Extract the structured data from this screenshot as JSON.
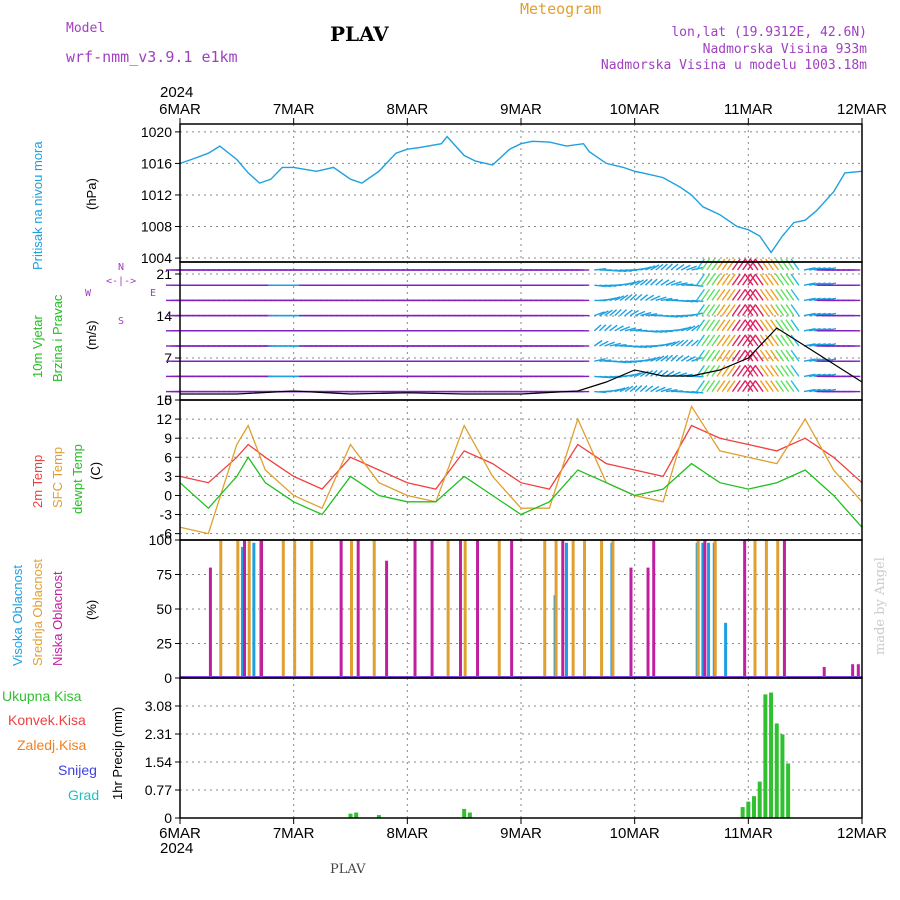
{
  "header": {
    "model_label": "Model",
    "model_name": "wrf-nmm_v3.9.1 e1km",
    "title": "PLAV",
    "meteogram": "Meteogram",
    "lonlat": "lon,lat (19.9312E, 42.6N)",
    "altitude": "Nadmorska Visina 933m",
    "model_altitude": "Nadmorska Visina u modelu 1003.18m",
    "year_top": "2024",
    "year_bottom": "2024",
    "footer": "PLAV",
    "credit": "made by Angel"
  },
  "x_axis": {
    "labels": [
      "6MAR",
      "7MAR",
      "8MAR",
      "9MAR",
      "10MAR",
      "11MAR",
      "12MAR"
    ]
  },
  "colors": {
    "pressure": "#1ea0e0",
    "temp2m": "#f04040",
    "sfc": "#e0a030",
    "dew": "#20c020",
    "high_cloud": "#1ea0e0",
    "mid_cloud": "#e0a030",
    "low_cloud": "#c020a0",
    "precip": "#30c030",
    "wind_calm": "#8020c0",
    "wind_mid": "#1ea0e0",
    "wind_strong": "#e02060"
  },
  "panels": {
    "pressure": {
      "ylabel": "Pritisak na nivou mora",
      "unit": "(hPa)",
      "ticks": [
        "1004",
        "1008",
        "1012",
        "1016",
        "1020"
      ]
    },
    "wind": {
      "ylabel1": "10m Vjetar",
      "ylabel2": "Brzina i Pravac",
      "unit": "(m/s)",
      "ticks": [
        "0",
        "7",
        "14",
        "21"
      ],
      "compass_n": "N",
      "compass_w": "W",
      "compass_e": "E",
      "compass_s": "S"
    },
    "temp": {
      "ylabel1": "2m Temp",
      "ylabel2": "SFC Temp",
      "ylabel3": "dewpt Temp",
      "unit": "(C)",
      "ticks": [
        "-6",
        "-3",
        "0",
        "3",
        "6",
        "9",
        "12",
        "15"
      ]
    },
    "cloud": {
      "ylabel1": "Visoka Oblacnost",
      "ylabel2": "Srednja Oblacnost",
      "ylabel3": "Niska Oblacnost",
      "unit": "(%)",
      "ticks": [
        "0",
        "25",
        "50",
        "75",
        "100"
      ]
    },
    "precip": {
      "legend": [
        "Ukupna Kisa",
        "Konvek.Kisa",
        "Zaledj.Kisa",
        "Snijeg",
        "Grad"
      ],
      "ylabel": "1hr Precip (mm)",
      "ticks": [
        "0",
        "0.77",
        "1.54",
        "2.31",
        "3.08"
      ]
    }
  },
  "chart_data": [
    {
      "type": "line",
      "title": "Pritisak na nivou mora",
      "ylabel": "(hPa)",
      "ylim": [
        1003.5,
        1021
      ],
      "series": [
        {
          "name": "Pritisak na nivou mora",
          "x": [
            0,
            0.1,
            0.25,
            0.35,
            0.5,
            0.6,
            0.7,
            0.8,
            0.9,
            1.0,
            1.2,
            1.35,
            1.5,
            1.6,
            1.75,
            1.9,
            2.0,
            2.1,
            2.3,
            2.35,
            2.5,
            2.6,
            2.75,
            2.9,
            3.0,
            3.1,
            3.25,
            3.4,
            3.55,
            3.6,
            3.75,
            3.9,
            4.0,
            4.1,
            4.25,
            4.4,
            4.5,
            4.6,
            4.75,
            4.9,
            5.0,
            5.1,
            5.2,
            5.3,
            5.4,
            5.5,
            5.6,
            5.75,
            5.85,
            6.0
          ],
          "values": [
            1016,
            1016.5,
            1017.3,
            1018.2,
            1016.5,
            1014.8,
            1013.5,
            1014,
            1015.5,
            1015.5,
            1015,
            1015.5,
            1014,
            1013.5,
            1015,
            1017.3,
            1017.8,
            1018,
            1018.5,
            1019.4,
            1017,
            1016.3,
            1015.8,
            1017.8,
            1018.5,
            1018.8,
            1018.7,
            1018.2,
            1018.5,
            1017.5,
            1016,
            1015.5,
            1015,
            1014.7,
            1014.2,
            1013,
            1012,
            1010.5,
            1009.5,
            1008,
            1007.6,
            1006.8,
            1004.7,
            1006.8,
            1008.5,
            1008.8,
            1010,
            1012.4,
            1014.8,
            1015
          ]
        }
      ]
    },
    {
      "type": "line",
      "title": "10m Vjetar Brzina i Pravac",
      "ylabel": "(m/s)",
      "ylim": [
        0,
        23
      ],
      "series": [
        {
          "name": "10m Vjetar",
          "x": [
            0,
            0.5,
            1.0,
            1.5,
            2.0,
            2.5,
            3.0,
            3.5,
            3.75,
            4.0,
            4.25,
            4.5,
            4.75,
            5.0,
            5.25,
            5.5,
            5.75,
            6.0
          ],
          "values": [
            1,
            1,
            1.5,
            1,
            1.2,
            1,
            1,
            1.5,
            3,
            5,
            4,
            4,
            5,
            7,
            12,
            9,
            6,
            3
          ]
        }
      ]
    },
    {
      "type": "line",
      "title": "2m Temp / SFC Temp / dewpt Temp",
      "ylabel": "(C)",
      "ylim": [
        -7,
        15
      ],
      "x": [
        0,
        0.25,
        0.5,
        0.6,
        0.75,
        1.0,
        1.25,
        1.5,
        1.75,
        2.0,
        2.25,
        2.5,
        2.75,
        3.0,
        3.25,
        3.5,
        3.75,
        4.0,
        4.25,
        4.5,
        4.75,
        5.0,
        5.25,
        5.5,
        5.75,
        6.0
      ],
      "series": [
        {
          "name": "2m Temp",
          "values": [
            3,
            2,
            6,
            8,
            6,
            3,
            1,
            6,
            4,
            2,
            1,
            7,
            5,
            2,
            1,
            8,
            5,
            4,
            3,
            11,
            9,
            8,
            7,
            9,
            6,
            2
          ]
        },
        {
          "name": "SFC Temp",
          "values": [
            -5,
            -6,
            8,
            11,
            4,
            0,
            -2,
            8,
            2,
            0,
            -1,
            11,
            3,
            -2,
            -2,
            12,
            2,
            0,
            -1,
            14,
            7,
            6,
            5,
            12,
            4,
            -1
          ]
        },
        {
          "name": "dewpt Temp",
          "values": [
            2,
            -2,
            3,
            6,
            2,
            -1,
            -3,
            3,
            0,
            -1,
            -1,
            3,
            0,
            -3,
            -1,
            4,
            2,
            0,
            1,
            5,
            2,
            1,
            2,
            4,
            0,
            -5
          ]
        }
      ]
    },
    {
      "type": "bar",
      "title": "Oblacnost",
      "ylabel": "(%)",
      "ylim": [
        0,
        100
      ],
      "series": [
        {
          "name": "Visoka Oblacnost",
          "x": [
            0.55,
            0.65,
            3.3,
            3.4,
            3.8,
            4.55,
            4.6,
            4.65,
            4.7,
            4.8
          ],
          "values": [
            95,
            98,
            60,
            98,
            98,
            98,
            98,
            98,
            98,
            40
          ]
        },
        {
          "name": "Srednja Oblacnost",
          "x": [
            0.35,
            0.5,
            0.6,
            0.7,
            0.9,
            1.0,
            1.15,
            1.5,
            1.7,
            2.35,
            2.5,
            2.8,
            3.2,
            3.3,
            3.45,
            3.55,
            3.7,
            3.8,
            4.55,
            4.7,
            5.05,
            5.15,
            5.25
          ],
          "values": [
            100,
            100,
            100,
            100,
            100,
            100,
            100,
            100,
            100,
            100,
            100,
            100,
            100,
            100,
            100,
            100,
            100,
            100,
            100,
            100,
            100,
            100,
            100
          ]
        },
        {
          "name": "Niska Oblacnost",
          "x": [
            0.25,
            0.55,
            0.7,
            1.4,
            1.55,
            1.8,
            2.05,
            2.2,
            2.45,
            2.6,
            2.9,
            3.35,
            3.95,
            4.1,
            4.15,
            4.6,
            4.95,
            5.3,
            5.65,
            5.9,
            5.95
          ],
          "values": [
            80,
            100,
            100,
            100,
            100,
            85,
            100,
            100,
            100,
            100,
            100,
            100,
            80,
            80,
            100,
            100,
            100,
            100,
            8,
            10,
            10
          ]
        }
      ]
    },
    {
      "type": "bar",
      "title": "1hr Precip",
      "ylabel": "1hr Precip (mm)",
      "ylim": [
        0,
        3.85
      ],
      "series": [
        {
          "name": "Ukupna Kisa",
          "x": [
            1.5,
            1.55,
            1.75,
            2.5,
            2.55,
            4.95,
            5.0,
            5.05,
            5.1,
            5.15,
            5.2,
            5.25,
            5.3,
            5.35
          ],
          "values": [
            0.12,
            0.15,
            0.08,
            0.25,
            0.15,
            0.3,
            0.45,
            0.6,
            1.0,
            3.4,
            3.45,
            2.6,
            2.3,
            1.5
          ]
        }
      ]
    }
  ]
}
